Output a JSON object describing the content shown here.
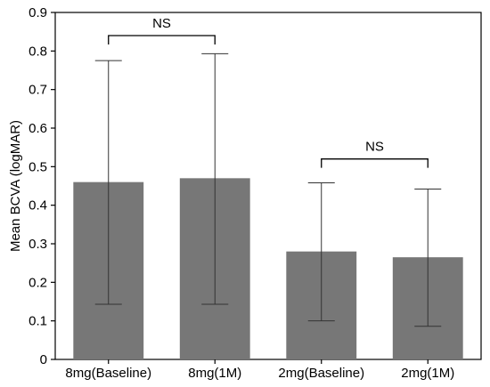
{
  "chart_data": {
    "type": "bar",
    "categories": [
      "8mg(Baseline)",
      "8mg(1M)",
      "2mg(Baseline)",
      "2mg(1M)"
    ],
    "values": [
      0.46,
      0.47,
      0.28,
      0.265
    ],
    "error_low": [
      0.143,
      0.143,
      0.1,
      0.086
    ],
    "error_high": [
      0.775,
      0.793,
      0.458,
      0.442
    ],
    "ylabel": "Mean BCVA (logMAR)",
    "xlabel": "",
    "ylim": [
      0,
      0.9
    ],
    "yticks": [
      0,
      0.1,
      0.2,
      0.3,
      0.4,
      0.5,
      0.6,
      0.7,
      0.8,
      0.9
    ],
    "ytick_labels": [
      "0",
      "0.1",
      "0.2",
      "0.3",
      "0.4",
      "0.5",
      "0.6",
      "0.7",
      "0.8",
      "0.9"
    ],
    "grid": false,
    "bar_color": "#777777",
    "error_color": "#333333",
    "significance": [
      {
        "from": 0,
        "to": 1,
        "label": "NS",
        "y": 0.84
      },
      {
        "from": 2,
        "to": 3,
        "label": "NS",
        "y": 0.52
      }
    ]
  }
}
